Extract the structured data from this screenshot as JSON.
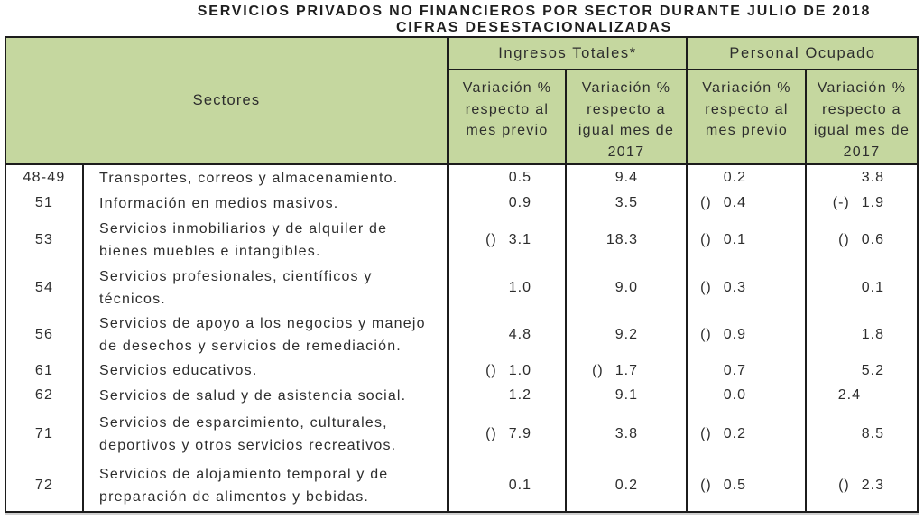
{
  "title": {
    "line1": "SERVICIOS PRIVADOS NO FINANCIEROS POR SECTOR DURANTE JULIO DE 2018",
    "line2": "CIFRAS DESESTACIONALIZADAS"
  },
  "table": {
    "sector_header": "Sectores",
    "groups": [
      {
        "label": "Ingresos Totales*",
        "subheaders": [
          "Variación %\nrespecto al\nmes previo",
          "Variación %\nrespecto a\nigual mes de\n2017"
        ]
      },
      {
        "label": "Personal Ocupado",
        "subheaders": [
          "Variación %\nrespecto al\nmes previo",
          "Variación %\nrespecto a\nigual mes de\n2017"
        ]
      }
    ],
    "rows": [
      {
        "code": "48-49",
        "name": "Transportes, correos y almacenamiento.",
        "values": [
          {
            "sign": "",
            "num": "0.5"
          },
          {
            "sign": "",
            "num": "9.4"
          },
          {
            "sign": "",
            "num": "0.2"
          },
          {
            "sign": "",
            "num": "3.8"
          }
        ]
      },
      {
        "code": "51",
        "name": "Información en medios masivos.",
        "values": [
          {
            "sign": "",
            "num": "0.9"
          },
          {
            "sign": "",
            "num": "3.5"
          },
          {
            "sign": "()",
            "num": "0.4"
          },
          {
            "sign": "(-)",
            "num": "1.9"
          }
        ]
      },
      {
        "code": "53",
        "name": "Servicios inmobiliarios y de alquiler de\nbienes muebles e intangibles.",
        "values": [
          {
            "sign": "()",
            "num": "3.1"
          },
          {
            "sign": "",
            "num": "18.3"
          },
          {
            "sign": "()",
            "num": "0.1"
          },
          {
            "sign": "()",
            "num": "0.6"
          }
        ]
      },
      {
        "code": "54",
        "name": "Servicios profesionales, científicos y\ntécnicos.",
        "values": [
          {
            "sign": "",
            "num": "1.0"
          },
          {
            "sign": "",
            "num": "9.0"
          },
          {
            "sign": "()",
            "num": "0.3"
          },
          {
            "sign": "",
            "num": "0.1"
          }
        ]
      },
      {
        "code": "56",
        "name": "Servicios de apoyo a los negocios y manejo\nde desechos y servicios de remediación.",
        "values": [
          {
            "sign": "",
            "num": "4.8"
          },
          {
            "sign": "",
            "num": "9.2"
          },
          {
            "sign": "()",
            "num": "0.9"
          },
          {
            "sign": "",
            "num": "1.8"
          }
        ]
      },
      {
        "code": "61",
        "name": "Servicios educativos.",
        "values": [
          {
            "sign": "()",
            "num": "1.0"
          },
          {
            "sign": "()",
            "num": "1.7"
          },
          {
            "sign": "",
            "num": "0.7"
          },
          {
            "sign": "",
            "num": "5.2"
          }
        ]
      },
      {
        "code": "62",
        "name": "Servicios de salud y de asistencia social.",
        "values": [
          {
            "sign": "",
            "num": "1.2"
          },
          {
            "sign": "",
            "num": "9.1"
          },
          {
            "sign": "",
            "num": "0.0"
          },
          {
            "sign": "",
            "num": "2.4",
            "shift_left": true
          }
        ]
      },
      {
        "code": "71",
        "name": "Servicios de esparcimiento, culturales,\ndeportivos y otros servicios recreativos.",
        "values": [
          {
            "sign": "()",
            "num": "7.9"
          },
          {
            "sign": "",
            "num": "3.8"
          },
          {
            "sign": "()",
            "num": "0.2"
          },
          {
            "sign": "",
            "num": "8.5"
          }
        ]
      },
      {
        "code": "72",
        "name": "Servicios de alojamiento temporal y de\npreparación de alimentos y bebidas.",
        "values": [
          {
            "sign": "",
            "num": "0.1"
          },
          {
            "sign": "",
            "num": "0.2"
          },
          {
            "sign": "()",
            "num": "0.5"
          },
          {
            "sign": "()",
            "num": "2.3"
          }
        ]
      }
    ]
  },
  "colors": {
    "header_green": "#c5d79f",
    "border": "#1c1c1c",
    "text": "#2d2d2d"
  }
}
